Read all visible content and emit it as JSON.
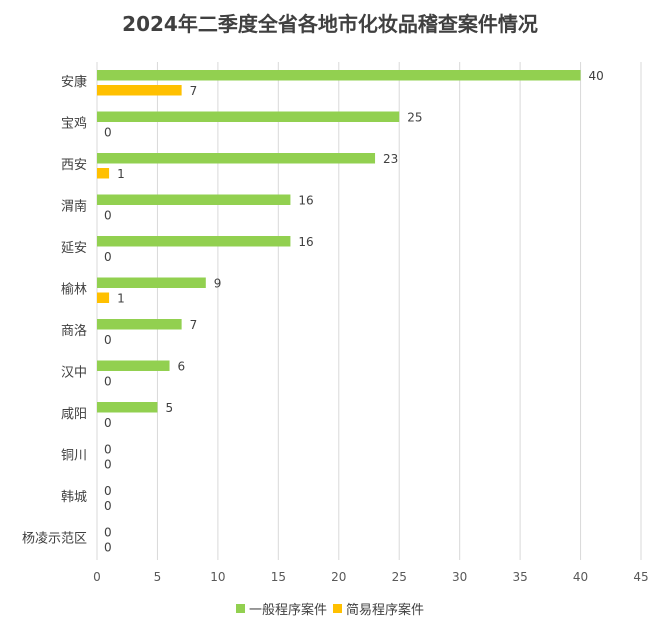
{
  "chart_data": {
    "type": "bar",
    "orientation": "horizontal",
    "title": "2024年二季度全省各地市化妆品稽查案件情况",
    "categories": [
      "安康",
      "宝鸡",
      "西安",
      "渭南",
      "延安",
      "榆林",
      "商洛",
      "汉中",
      "咸阳",
      "铜川",
      "韩城",
      "杨凌示范区"
    ],
    "series": [
      {
        "name": "一般程序案件",
        "color": "#92D050",
        "values": [
          40,
          25,
          23,
          16,
          16,
          9,
          7,
          6,
          5,
          0,
          0,
          0
        ]
      },
      {
        "name": "简易程序案件",
        "color": "#FFC000",
        "values": [
          7,
          0,
          1,
          0,
          0,
          1,
          0,
          0,
          0,
          0,
          0,
          0
        ]
      }
    ],
    "xlim": [
      0,
      45
    ],
    "xticks": [
      0,
      5,
      10,
      15,
      20,
      25,
      30,
      35,
      40,
      45
    ],
    "grid": true,
    "legend": "bottom",
    "data_labels": true
  }
}
